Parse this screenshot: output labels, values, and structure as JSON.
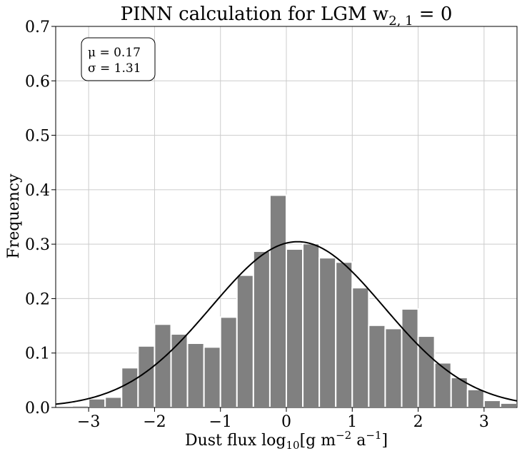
{
  "chart_data": {
    "type": "bar",
    "title": "PINN calculation for LGM w",
    "title_subscript": "2, 1",
    "title_suffix": " = 0",
    "xlabel": "Dust flux log",
    "xlabel_sub": "10",
    "xlabel_unit_open": "[g m",
    "xlabel_exp1": "−2",
    "xlabel_unit_mid": " a",
    "xlabel_exp2": "−1",
    "xlabel_unit_close": "]",
    "ylabel": "Frequency",
    "xlim": [
      -3.5,
      3.5
    ],
    "ylim": [
      0,
      0.7
    ],
    "xticks": [
      -3,
      -2,
      -1,
      0,
      1,
      2,
      3
    ],
    "xtick_labels": [
      "−3",
      "−2",
      "−1",
      "0",
      "1",
      "2",
      "3"
    ],
    "yticks": [
      0.0,
      0.1,
      0.2,
      0.3,
      0.4,
      0.5,
      0.6,
      0.7
    ],
    "ytick_labels": [
      "0.0",
      "0.1",
      "0.2",
      "0.3",
      "0.4",
      "0.5",
      "0.6",
      "0.7"
    ],
    "grid": true,
    "bin_width": 0.25,
    "bin_centers": [
      -3.125,
      -2.875,
      -2.625,
      -2.375,
      -2.125,
      -1.875,
      -1.625,
      -1.375,
      -1.125,
      -0.875,
      -0.625,
      -0.375,
      -0.125,
      0.125,
      0.375,
      0.625,
      0.875,
      1.125,
      1.375,
      1.625,
      1.875,
      2.125,
      2.375,
      2.625,
      2.875,
      3.125,
      3.375
    ],
    "values": [
      0.003,
      0.016,
      0.019,
      0.073,
      0.113,
      0.153,
      0.135,
      0.118,
      0.111,
      0.166,
      0.243,
      0.287,
      0.39,
      0.291,
      0.301,
      0.275,
      0.267,
      0.22,
      0.151,
      0.145,
      0.181,
      0.131,
      0.082,
      0.055,
      0.033,
      0.013,
      0.008
    ],
    "bar_color": "#808080",
    "curve": {
      "type": "normal_pdf",
      "mu": 0.17,
      "sigma": 1.31,
      "color": "#000000"
    },
    "annotation": {
      "mu_text": "μ = 0.17",
      "sigma_text": "σ = 1.31",
      "position": "top-left"
    }
  }
}
